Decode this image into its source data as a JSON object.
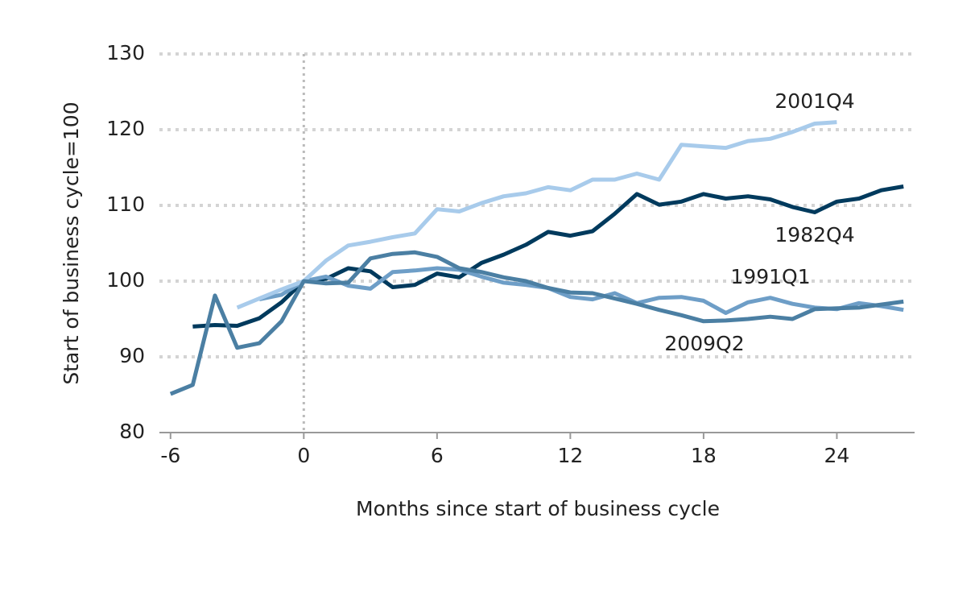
{
  "chart_data": {
    "type": "line",
    "xlabel": "Months since start of business cycle",
    "ylabel": "Start of business cycle=100",
    "x": [
      -6,
      -5,
      -4,
      -3,
      -2,
      -1,
      0,
      1,
      2,
      3,
      4,
      5,
      6,
      7,
      8,
      9,
      10,
      11,
      12,
      13,
      14,
      15,
      16,
      17,
      18,
      19,
      20,
      21,
      22,
      23,
      24,
      25,
      26,
      27
    ],
    "series": [
      {
        "name": "1982Q4",
        "color": "#003a5d",
        "values": [
          null,
          94.0,
          94.2,
          94.1,
          95.1,
          97.2,
          100,
          100.3,
          101.7,
          101.3,
          99.2,
          99.5,
          101.0,
          100.5,
          102.4,
          103.5,
          104.8,
          106.5,
          106.0,
          106.6,
          108.9,
          111.5,
          110.1,
          110.5,
          111.5,
          110.9,
          111.2,
          110.8,
          109.8,
          109.1,
          110.5,
          110.9,
          112.0,
          112.5
        ]
      },
      {
        "name": "1991Q1",
        "color": "#6e9ec7",
        "values": [
          null,
          null,
          null,
          null,
          97.6,
          98.2,
          100,
          100.6,
          99.4,
          99.0,
          101.2,
          101.4,
          101.7,
          101.5,
          100.6,
          99.8,
          99.5,
          99.1,
          97.9,
          97.6,
          98.4,
          97.1,
          97.8,
          97.9,
          97.4,
          95.8,
          97.2,
          97.8,
          97.0,
          96.5,
          96.3,
          97.1,
          96.7,
          96.2
        ]
      },
      {
        "name": "2001Q4",
        "color": "#a8cbeb",
        "values": [
          null,
          null,
          null,
          96.5,
          97.7,
          98.9,
          100,
          102.7,
          104.7,
          105.2,
          105.8,
          106.3,
          109.5,
          109.2,
          110.3,
          111.2,
          111.6,
          112.4,
          112.0,
          113.4,
          113.4,
          114.2,
          113.4,
          118.0,
          117.8,
          117.6,
          118.5,
          118.8,
          119.7,
          120.8,
          121.0,
          null,
          null,
          null
        ]
      },
      {
        "name": "2009Q2",
        "color": "#4b7fa3",
        "values": [
          85.1,
          86.3,
          98.1,
          91.2,
          91.8,
          94.7,
          100,
          99.7,
          99.8,
          103.0,
          103.6,
          103.8,
          103.2,
          101.7,
          101.2,
          100.5,
          100.0,
          99.1,
          98.5,
          98.4,
          97.7,
          97.0,
          96.2,
          95.5,
          94.7,
          94.8,
          95.0,
          95.3,
          95.0,
          96.3,
          96.4,
          96.5,
          96.9,
          97.3
        ]
      }
    ],
    "xlim": [
      -6.5,
      27.5
    ],
    "xticks": [
      -6,
      0,
      6,
      12,
      18,
      24
    ],
    "ylim": [
      80,
      130
    ],
    "yticks": [
      80,
      90,
      100,
      110,
      120,
      130
    ],
    "grid": true,
    "vline": 0
  }
}
